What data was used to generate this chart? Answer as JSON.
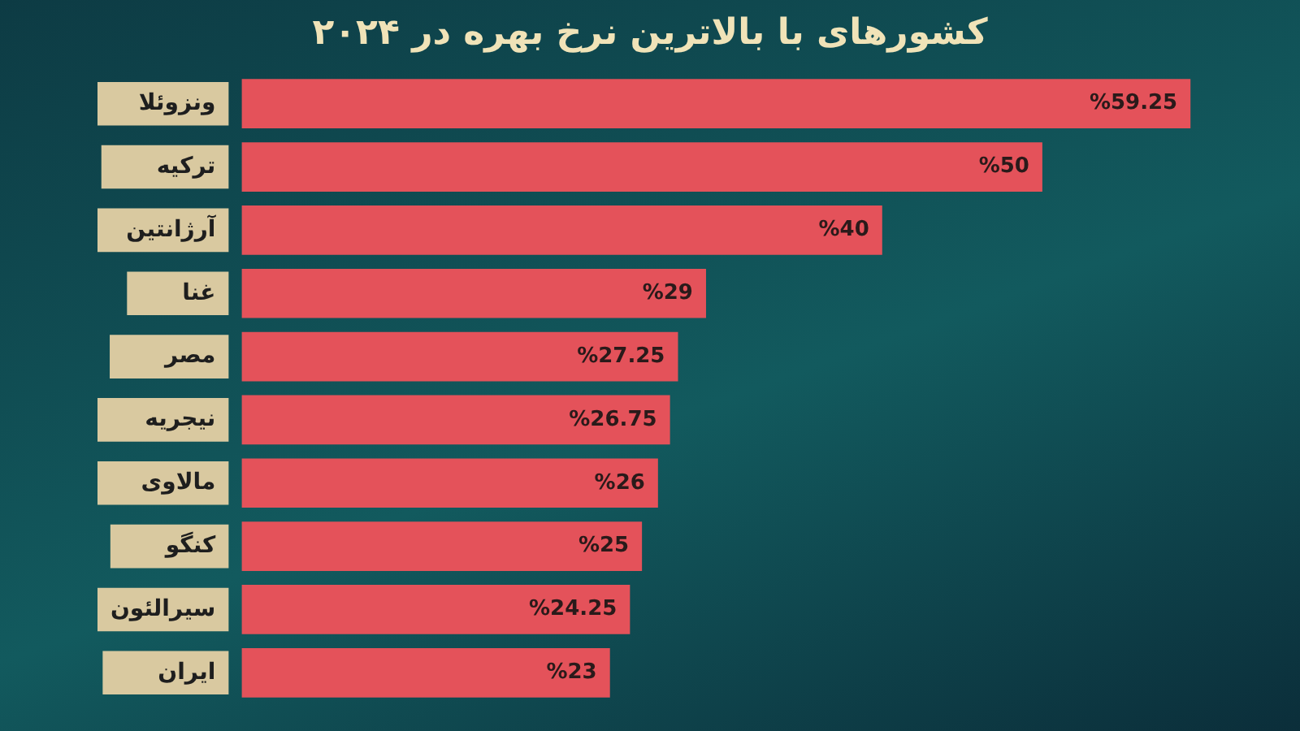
{
  "chart_data": {
    "type": "bar",
    "orientation": "horizontal",
    "title": "کشورهای با بالاترین نرخ بهره در ۲۰۲۴",
    "categories": [
      "ونزوئلا",
      "ترکیه",
      "آرژانتین",
      "غنا",
      "مصر",
      "نیجریه",
      "مالاوی",
      "کنگو",
      "سیرالئون",
      "ایران"
    ],
    "values": [
      59.25,
      50,
      40,
      29,
      27.25,
      26.75,
      26,
      25,
      24.25,
      23
    ],
    "value_labels": [
      "%59.25",
      "%50",
      "%40",
      "%29",
      "%27.25",
      "%26.75",
      "%26",
      "%25",
      "%24.25",
      "%23"
    ],
    "color": "#e4525a"
  }
}
